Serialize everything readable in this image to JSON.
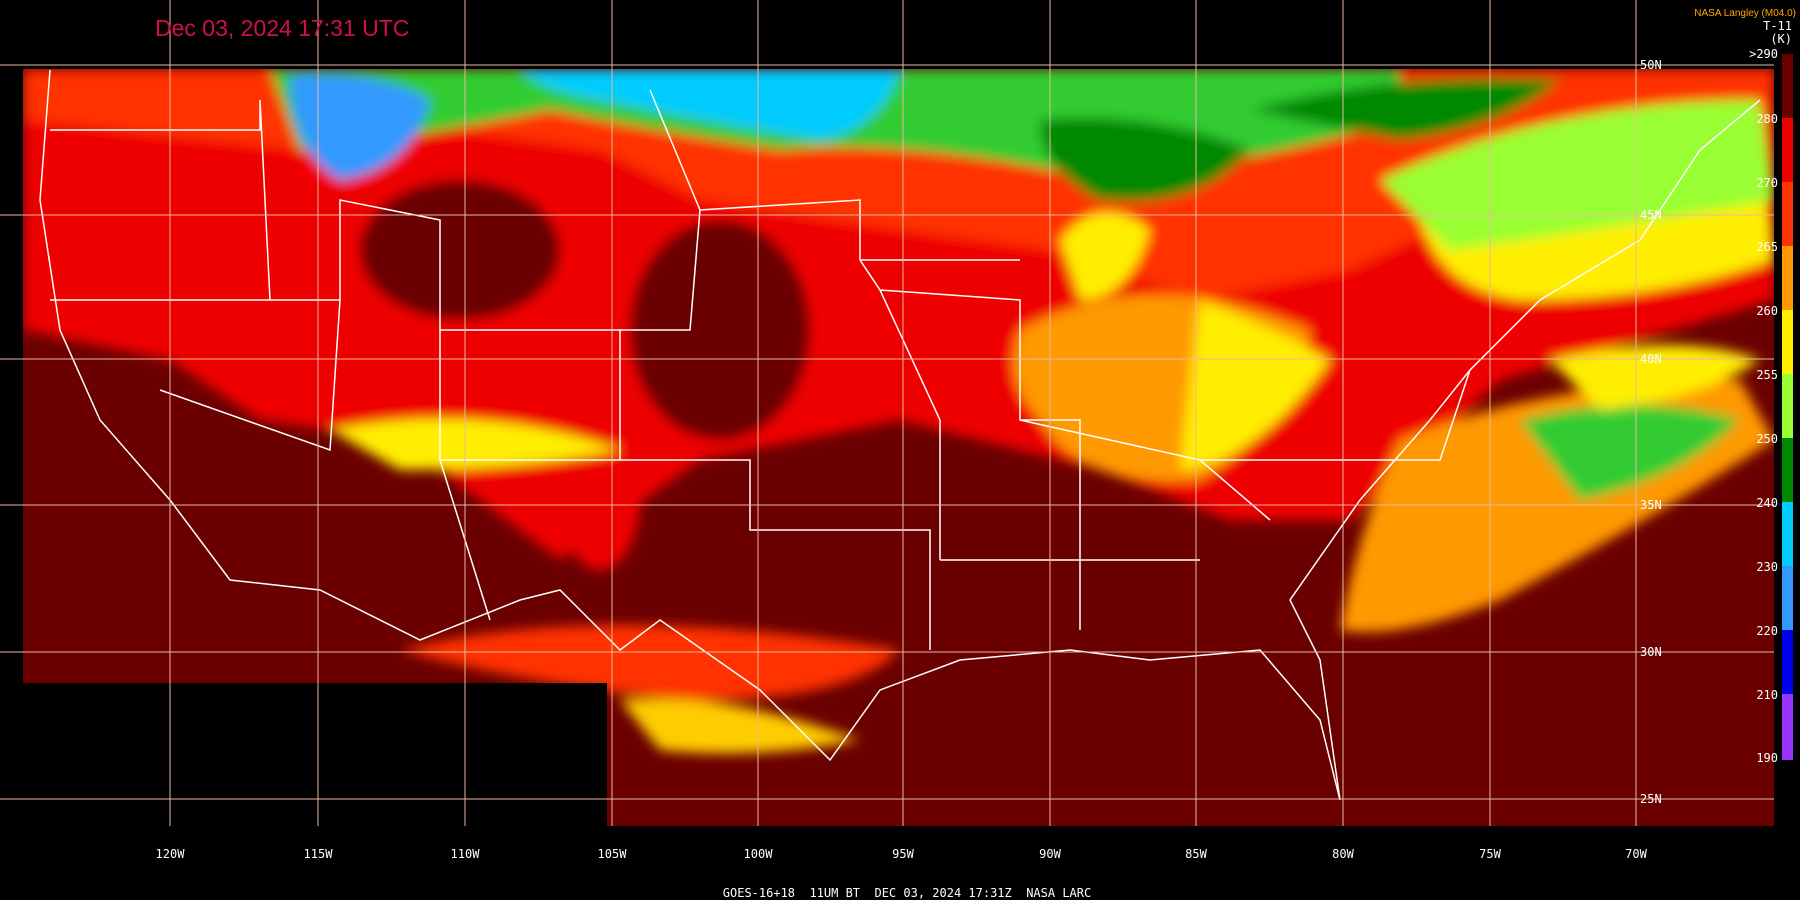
{
  "header": {
    "title": "Dec 03, 2024 17:31 UTC",
    "source": "NASA Langley (M04.0)",
    "product": "T-11",
    "unit": "(K)"
  },
  "colorbar": {
    "labels": [
      ">290",
      "280",
      "270",
      "265",
      "260",
      "255",
      "250",
      "240",
      "230",
      "220",
      "210",
      "190"
    ]
  },
  "longitudes": [
    "120W",
    "115W",
    "110W",
    "105W",
    "100W",
    "95W",
    "90W",
    "85W",
    "80W",
    "75W",
    "70W"
  ],
  "latitudes": [
    "50N",
    "45N",
    "40N",
    "35N",
    "30N",
    "25N"
  ],
  "footer": "GOES-16+18  11UM BT  DEC 03, 2024 17:31Z  NASA LARC"
}
